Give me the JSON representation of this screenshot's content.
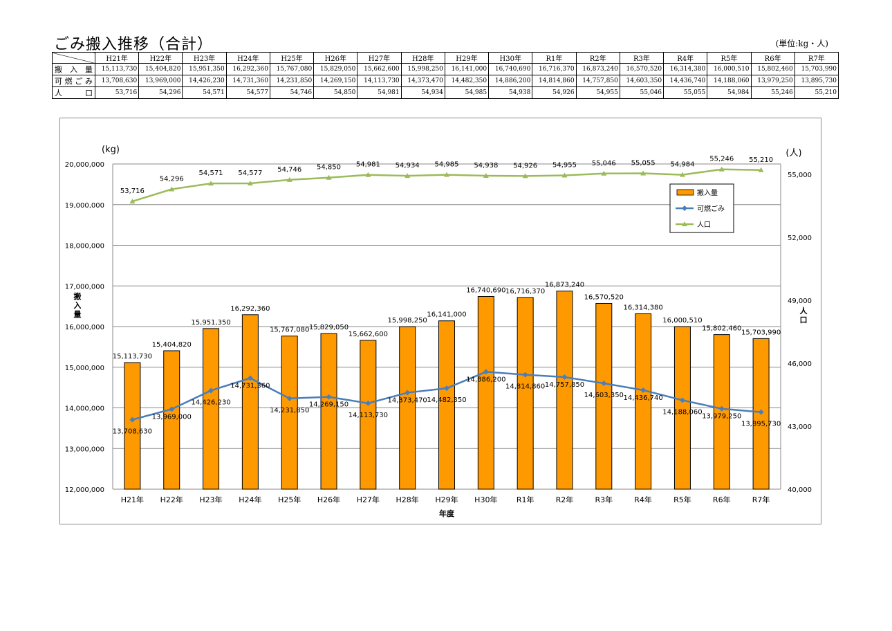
{
  "page": {
    "title": "ごみ搬入推移（合計）",
    "unit_note": "(単位:kg・人)"
  },
  "table": {
    "columns": [
      "H21年",
      "H22年",
      "H23年",
      "H24年",
      "H25年",
      "H26年",
      "H27年",
      "H28年",
      "H29年",
      "H30年",
      "R1年",
      "R2年",
      "R3年",
      "R4年",
      "R5年",
      "R6年",
      "R7年"
    ],
    "rows": [
      {
        "label": "搬入量",
        "values": [
          "15,113,730",
          "15,404,820",
          "15,951,350",
          "16,292,360",
          "15,767,080",
          "15,829,050",
          "15,662,600",
          "15,998,250",
          "16,141,000",
          "16,740,690",
          "16,716,370",
          "16,873,240",
          "16,570,520",
          "16,314,380",
          "16,000,510",
          "15,802,460",
          "15,703,990"
        ]
      },
      {
        "label": "可燃ごみ",
        "values": [
          "13,708,630",
          "13,969,000",
          "14,426,230",
          "14,731,360",
          "14,231,850",
          "14,269,150",
          "14,113,730",
          "14,373,470",
          "14,482,350",
          "14,886,200",
          "14,814,860",
          "14,757,850",
          "14,603,350",
          "14,436,740",
          "14,188,060",
          "13,979,250",
          "13,895,730"
        ]
      },
      {
        "label": "人口",
        "values": [
          "53,716",
          "54,296",
          "54,571",
          "54,577",
          "54,746",
          "54,850",
          "54,981",
          "54,934",
          "54,985",
          "54,938",
          "54,926",
          "54,955",
          "55,046",
          "55,055",
          "54,984",
          "55,246",
          "55,210"
        ]
      }
    ]
  },
  "chart_data": {
    "type": "bar",
    "categories": [
      "H21年",
      "H22年",
      "H23年",
      "H24年",
      "H25年",
      "H26年",
      "H27年",
      "H28年",
      "H29年",
      "H30年",
      "R1年",
      "R2年",
      "R3年",
      "R4年",
      "R5年",
      "R6年",
      "R7年"
    ],
    "series": [
      {
        "name": "搬入量",
        "type": "bar",
        "axis": "left",
        "color": "#ff9900",
        "values": [
          15113730,
          15404820,
          15951350,
          16292360,
          15767080,
          15829050,
          15662600,
          15998250,
          16141000,
          16740690,
          16716370,
          16873240,
          16570520,
          16314380,
          16000510,
          15802460,
          15703990
        ],
        "labels": [
          "15,113,730",
          "15,404,820",
          "15,951,350",
          "16,292,360",
          "15,767,080",
          "15,829,050",
          "15,662,600",
          "15,998,250",
          "16,141,000",
          "16,740,690",
          "16,716,370",
          "16,873,240",
          "16,570,520",
          "16,314,380",
          "16,000,510",
          "15,802,460",
          "15,703,990"
        ]
      },
      {
        "name": "可燃ごみ",
        "type": "line",
        "axis": "left",
        "color": "#4a7ebb",
        "marker": "diamond",
        "values": [
          13708630,
          13969000,
          14426230,
          14731360,
          14231850,
          14269150,
          14113730,
          14373470,
          14482350,
          14886200,
          14814860,
          14757850,
          14603350,
          14436740,
          14188060,
          13979250,
          13895730
        ],
        "labels": [
          "13,708,630",
          "13,969,000",
          "14,426,230",
          "14,731,360",
          "14,231,850",
          "14,269,150",
          "14,113,730",
          "14,373,470",
          "14,482,350",
          "14,886,200",
          "14,814,860",
          "14,757,850",
          "14,603,350",
          "14,436,740",
          "14,188,060",
          "13,979,250",
          "13,895,730"
        ]
      },
      {
        "name": "人口",
        "type": "line",
        "axis": "right",
        "color": "#9bbb59",
        "marker": "triangle",
        "values": [
          53716,
          54296,
          54571,
          54577,
          54746,
          54850,
          54981,
          54934,
          54985,
          54938,
          54926,
          54955,
          55046,
          55055,
          54984,
          55246,
          55210
        ],
        "labels": [
          "53,716",
          "54,296",
          "54,571",
          "54,577",
          "54,746",
          "54,850",
          "54,981",
          "54,934",
          "54,985",
          "54,938",
          "54,926",
          "54,955",
          "55,046",
          "55,055",
          "54,984",
          "55,246",
          "55,210"
        ]
      }
    ],
    "y_left": {
      "label": "搬入量",
      "unit": "(kg)",
      "lim": [
        12000000,
        20000000
      ],
      "ticks": [
        12000000,
        13000000,
        14000000,
        15000000,
        16000000,
        17000000,
        18000000,
        19000000,
        20000000
      ],
      "tick_labels": [
        "12,000,000",
        "13,000,000",
        "14,000,000",
        "15,000,000",
        "16,000,000",
        "17,000,000",
        "18,000,000",
        "19,000,000",
        "20,000,000"
      ]
    },
    "y_right": {
      "label": "人口",
      "unit": "(人)",
      "lim": [
        40000,
        55500
      ],
      "ticks": [
        40000,
        43000,
        46000,
        49000,
        52000,
        55000
      ],
      "tick_labels": [
        "40,000",
        "43,000",
        "46,000",
        "49,000",
        "52,000",
        "55,000"
      ]
    },
    "xlabel": "年度",
    "grid": true,
    "legend": "upper-right"
  }
}
